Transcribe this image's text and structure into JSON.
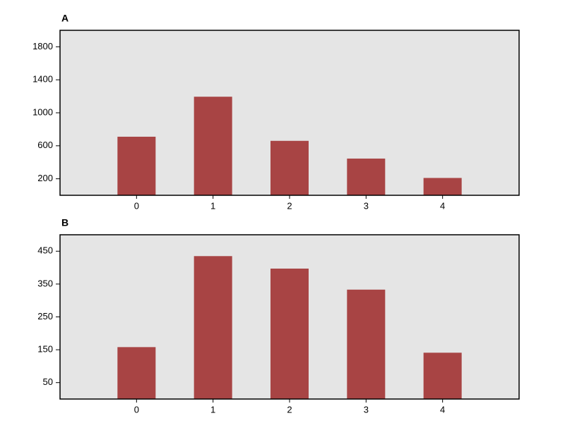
{
  "chart_data": [
    {
      "type": "bar",
      "title": "A",
      "categories": [
        "0",
        "1",
        "2",
        "3",
        "4"
      ],
      "values": [
        710,
        1195,
        660,
        445,
        210
      ],
      "color": "#a84444",
      "ylim": [
        0,
        2000
      ],
      "yticks": [
        200,
        600,
        1000,
        1400,
        1800
      ]
    },
    {
      "type": "bar",
      "title": "B",
      "categories": [
        "0",
        "1",
        "2",
        "3",
        "4"
      ],
      "values": [
        158,
        435,
        397,
        333,
        141
      ],
      "color": "#a84444",
      "ylim": [
        0,
        500
      ],
      "yticks": [
        50,
        150,
        250,
        350,
        450
      ]
    }
  ]
}
